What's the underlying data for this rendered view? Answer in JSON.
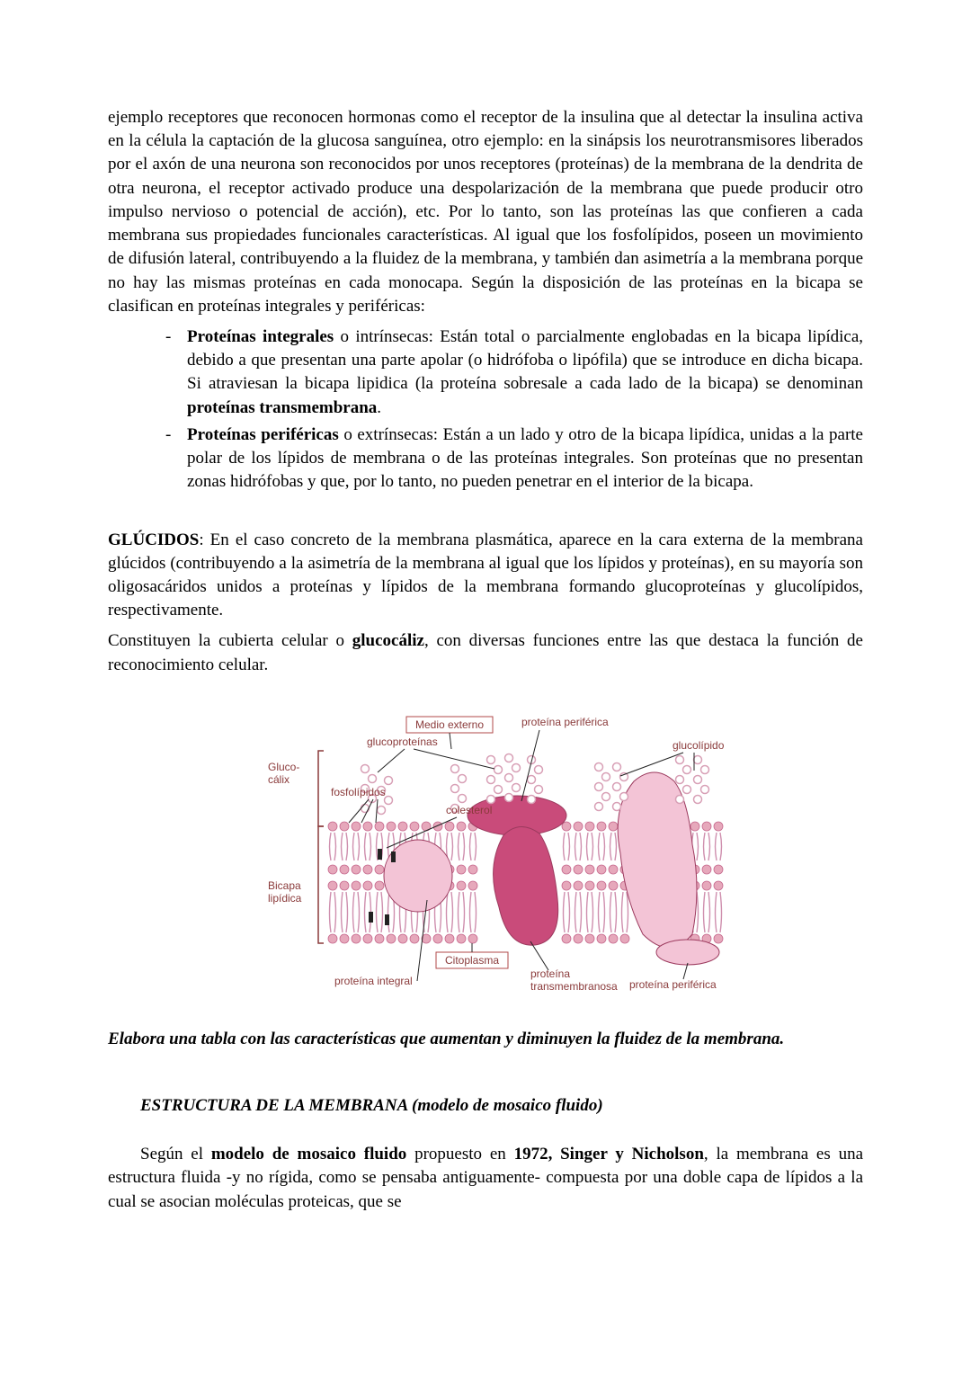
{
  "intro": {
    "p1_a": "ejemplo receptores que reconocen hormonas como el receptor de la insulina que al detectar la insulina activa en la célula la captación de la glucosa sanguínea, otro ejemplo: en la sinápsis los neurotransmisores liberados por el axón de una neurona son reconocidos por unos receptores (proteínas) de la membrana de la dendrita de otra neurona, el receptor activado produce una despolarización de la  membrana que puede producir otro impulso nervioso o potencial de acción), etc. Por lo tanto, son las proteínas las que confieren a cada membrana sus propiedades funcionales características. Al igual que los fosfolípidos, poseen un movimiento de difusión lateral, contribuyendo a la fluidez de la membrana, y también dan asimetría a la membrana porque no hay las mismas proteínas en cada monocapa. Según la disposición de las proteínas en la bicapa se clasifican en proteínas integrales y periféricas:"
  },
  "list": {
    "li1_bold": "Proteínas integrales",
    "li1_rest": " o intrínsecas: Están total o parcialmente englobadas en la bicapa lipídica, debido a que presentan una parte apolar (o hidrófoba o lipófila) que se introduce en dicha bicapa. Si atraviesan la bicapa lipidica (la proteína sobresale a cada lado de la bicapa) se denominan ",
    "li1_bold2": "proteínas transmembrana",
    "li1_end": ".",
    "li2_bold": "Proteínas periféricas",
    "li2_rest": " o extrínsecas: Están a un lado y otro de la bicapa lipídica, unidas a la parte polar de los lípidos de membrana o de las proteínas integrales. Son proteínas que no presentan zonas hidrófobas y que, por lo tanto, no pueden penetrar en el interior de la bicapa."
  },
  "glucidos": {
    "title": "GLÚCIDOS",
    "body1": ": En el caso concreto de la membrana plasmática, aparece en la cara externa de la membrana glúcidos (contribuyendo a la asimetría de la membrana al igual que los lípidos y proteínas), en su mayoría son oligosacáridos unidos a proteínas y lípidos de la membrana formando glucoproteínas y glucolípidos, respectivamente.",
    "body2a": "Constituyen la cubierta celular o ",
    "body2_bold": "glucocáliz",
    "body2b": ", con diversas funciones entre las que destaca la función de reconocimiento celular."
  },
  "figure": {
    "labels": {
      "medio_externo": "Medio externo",
      "proteina_periferica_top": "proteína periférica",
      "glucoproteinas": "glucoproteínas",
      "glucolipido": "glucolípido",
      "glucocalix": "Gluco-\ncálix",
      "fosfolipidos": "fosfolípidos",
      "colesterol": "colesterol",
      "bicapa_lipidica": "Bicapa\nlipídica",
      "citoplasma": "Citoplasma",
      "proteina_integral": "proteína integral",
      "proteina_transmembranosa": "proteína\ntransmembranosa",
      "proteina_periferica_bottom": "proteína periférica"
    },
    "colors": {
      "label_text": "#8a3a3a",
      "box_border": "#b04a4a",
      "box_fill": "#ffffff",
      "bracket": "#8a3a3a",
      "phospho_head": "#e6a8bb",
      "phospho_head_stroke": "#c76a8e",
      "phospho_tail": "#cf8fae",
      "glyco_chain": "#d8a0b6",
      "protein_fill_dark": "#c94b7a",
      "protein_fill_light": "#f3c4d6",
      "protein_stroke": "#9c3a5e",
      "cholesterol": "#222222",
      "leader_line": "#222222"
    }
  },
  "task": {
    "text": "Elabora una tabla con las características que aumentan y diminuyen la fluidez de la membrana."
  },
  "section2": {
    "heading": "ESTRUCTURA DE LA MEMBRANA (modelo de mosaico fluido)",
    "p_a": "Según el ",
    "p_bold1": "modelo de mosaico fluido",
    "p_b": " propuesto en ",
    "p_bold2": "1972, Singer y Nicholson",
    "p_c": ", la membrana es una estructura fluida -y no rígida, como se pensaba antiguamente- compuesta por una doble capa de lípidos a la cual se asocian moléculas proteicas, que se"
  }
}
